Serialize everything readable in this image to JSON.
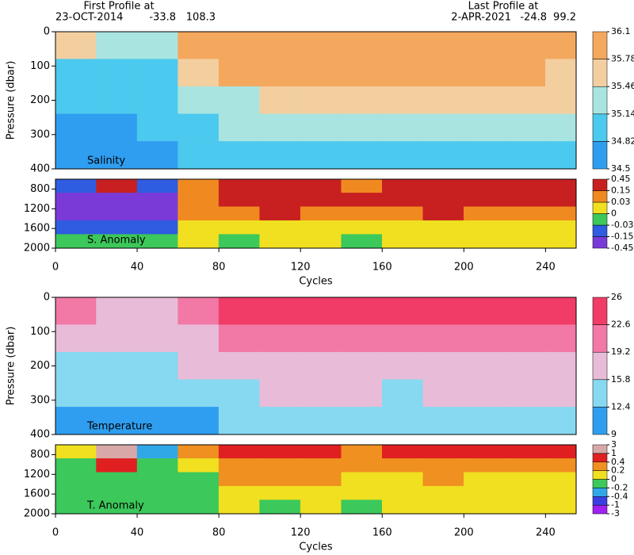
{
  "header": {
    "first_label": "First Profile at",
    "first_date": "23-OCT-2014",
    "first_lat": -33.8,
    "first_lon": 108.3,
    "last_label": "Last Profile at",
    "last_date": "2-APR-2021",
    "last_lat": -24.8,
    "last_lon": 99.2
  },
  "chart_data": [
    {
      "type": "heatmap",
      "label": "Salinity",
      "ylabel": "Pressure (dbar)",
      "xlim": [
        0,
        255
      ],
      "ylim": [
        400,
        0
      ],
      "yticks": [
        0,
        100,
        200,
        300,
        400
      ],
      "xbins": [
        0,
        20,
        40,
        60,
        80,
        100,
        120,
        140,
        160,
        180,
        200,
        220,
        240,
        255
      ],
      "ybins": [
        0,
        80,
        160,
        240,
        320,
        400
      ],
      "z": [
        [
          35.5,
          35.2,
          35.3,
          35.9,
          35.9,
          35.95,
          35.95,
          35.9,
          35.9,
          35.95,
          35.95,
          35.9,
          35.8
        ],
        [
          35.1,
          35.0,
          35.1,
          35.5,
          35.8,
          35.85,
          35.85,
          35.85,
          35.8,
          35.85,
          35.85,
          35.85,
          35.7
        ],
        [
          34.9,
          34.9,
          35.0,
          35.2,
          35.4,
          35.6,
          35.6,
          35.55,
          35.5,
          35.6,
          35.6,
          35.6,
          35.5
        ],
        [
          34.8,
          34.8,
          34.9,
          35.0,
          35.15,
          35.3,
          35.3,
          35.3,
          35.2,
          35.35,
          35.35,
          35.3,
          35.3
        ],
        [
          34.7,
          34.7,
          34.8,
          34.85,
          34.95,
          35.05,
          35.1,
          35.1,
          35.0,
          35.1,
          35.1,
          35.1,
          35.1
        ]
      ],
      "colorbar": {
        "levels": [
          34.5,
          34.82,
          35.14,
          35.46,
          35.78,
          36.1
        ],
        "colors": [
          "#2f9ef0",
          "#4cc9ee",
          "#a9e4e0",
          "#f3cfa0",
          "#f4a85e"
        ]
      }
    },
    {
      "type": "heatmap",
      "label": "S. Anomaly",
      "xlabel": "Cycles",
      "xlim": [
        0,
        255
      ],
      "xticks": [
        0,
        40,
        80,
        120,
        160,
        200,
        240
      ],
      "ylim": [
        2000,
        600
      ],
      "yticks": [
        800,
        1200,
        1600,
        2000
      ],
      "xbins": [
        0,
        20,
        40,
        60,
        80,
        100,
        120,
        140,
        160,
        180,
        200,
        220,
        240,
        255
      ],
      "ybins": [
        600,
        880,
        1160,
        1440,
        1720,
        2000
      ],
      "z": [
        [
          -0.05,
          0.2,
          -0.1,
          0.1,
          0.2,
          0.2,
          0.2,
          0.1,
          0.2,
          0.2,
          0.2,
          0.2,
          0.2
        ],
        [
          -0.2,
          -0.2,
          -0.2,
          0.05,
          0.2,
          0.2,
          0.2,
          0.2,
          0.2,
          0.2,
          0.2,
          0.2,
          0.2
        ],
        [
          -0.2,
          -0.2,
          -0.2,
          0.05,
          0.05,
          0.2,
          0.1,
          0.1,
          0.1,
          0.2,
          0.1,
          0.1,
          0.1
        ],
        [
          -0.1,
          -0.1,
          -0.05,
          0.02,
          0.0,
          0.02,
          0.02,
          0.02,
          0.02,
          0.02,
          0.02,
          0.02,
          0.02
        ],
        [
          -0.01,
          -0.01,
          -0.01,
          0.02,
          -0.01,
          0.02,
          0.02,
          -0.01,
          0.02,
          0.01,
          0.01,
          0.01,
          0.01
        ]
      ],
      "colorbar": {
        "levels": [
          -0.45,
          -0.15,
          -0.03,
          0,
          0.03,
          0.15,
          0.45
        ],
        "colors": [
          "#7a3ad8",
          "#2f5ce0",
          "#3cc85a",
          "#f0e020",
          "#f08a20",
          "#c82020"
        ]
      }
    },
    {
      "type": "heatmap",
      "label": "Temperature",
      "ylabel": "Pressure (dbar)",
      "xlim": [
        0,
        255
      ],
      "ylim": [
        400,
        0
      ],
      "yticks": [
        0,
        100,
        200,
        300,
        400
      ],
      "xbins": [
        0,
        20,
        40,
        60,
        80,
        100,
        120,
        140,
        160,
        180,
        200,
        220,
        240,
        255
      ],
      "ybins": [
        0,
        80,
        160,
        240,
        320,
        400
      ],
      "z": [
        [
          20,
          19,
          19,
          22,
          24,
          24,
          24,
          24,
          24,
          24,
          24,
          24,
          25
        ],
        [
          17,
          16,
          16,
          19,
          21,
          22,
          22,
          22,
          21,
          22,
          22,
          22,
          21
        ],
        [
          15,
          14,
          14,
          16,
          18,
          19,
          19,
          19,
          18,
          19,
          19,
          19,
          18
        ],
        [
          13,
          12.5,
          13,
          14,
          15,
          16,
          16,
          16,
          15.5,
          16,
          16,
          16,
          16
        ],
        [
          11,
          11,
          11.5,
          12,
          13,
          13.5,
          14,
          14,
          13,
          14,
          14,
          14,
          14
        ]
      ],
      "colorbar": {
        "levels": [
          9,
          12.4,
          15.8,
          19.2,
          22.6,
          26
        ],
        "colors": [
          "#2f9ef0",
          "#86d9f0",
          "#e8bcd8",
          "#f278a6",
          "#f03c66"
        ]
      }
    },
    {
      "type": "heatmap",
      "label": "T. Anomaly",
      "xlabel": "Cycles",
      "xlim": [
        0,
        255
      ],
      "xticks": [
        0,
        40,
        80,
        120,
        160,
        200,
        240
      ],
      "ylim": [
        2000,
        600
      ],
      "yticks": [
        800,
        1200,
        1600,
        2000
      ],
      "xbins": [
        0,
        20,
        40,
        60,
        80,
        100,
        120,
        140,
        160,
        180,
        200,
        220,
        240,
        255
      ],
      "ybins": [
        600,
        880,
        1160,
        1440,
        1720,
        2000
      ],
      "z": [
        [
          0.1,
          1.5,
          -0.3,
          0.3,
          0.5,
          0.5,
          0.5,
          0.3,
          0.5,
          0.5,
          0.5,
          0.5,
          0.5
        ],
        [
          -0.1,
          0.5,
          -0.1,
          0.1,
          0.3,
          0.3,
          0.3,
          0.2,
          0.3,
          0.3,
          0.3,
          0.3,
          0.3
        ],
        [
          -0.1,
          -0.1,
          -0.1,
          -0.1,
          0.3,
          0.3,
          0.3,
          0.1,
          0.1,
          0.3,
          0.1,
          0.1,
          0.1
        ],
        [
          -0.1,
          -0.1,
          -0.1,
          -0.1,
          0.1,
          0.1,
          0.1,
          0.1,
          0.1,
          0.1,
          0.1,
          0.1,
          0.1
        ],
        [
          -0.1,
          -0.1,
          -0.1,
          -0.1,
          0.05,
          -0.1,
          0.05,
          -0.1,
          0.1,
          0.05,
          0.05,
          0.05,
          0.05
        ]
      ],
      "colorbar": {
        "levels": [
          -3,
          -1,
          -0.4,
          -0.2,
          0,
          0.2,
          0.4,
          1,
          3
        ],
        "colors": [
          "#a020f0",
          "#3a40e0",
          "#30a8e8",
          "#3cc85a",
          "#f0e020",
          "#f09020",
          "#e02020",
          "#d8a8a8"
        ]
      }
    }
  ]
}
